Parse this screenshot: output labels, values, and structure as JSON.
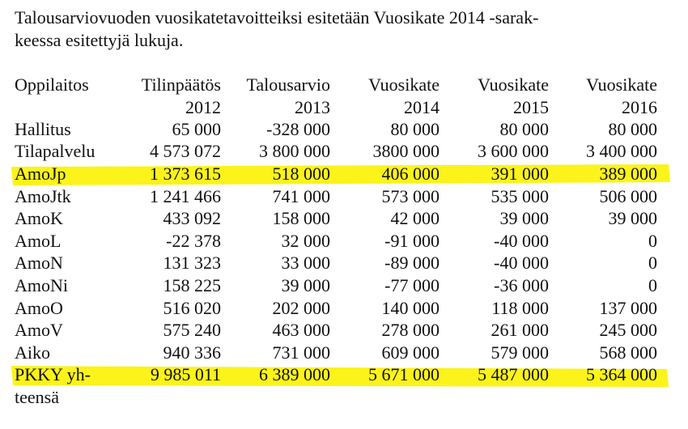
{
  "intro": {
    "lines": [
      "Talousarviovuoden vuosikatetavoitteiksi esitetään Vuosikate 2014 -sarak-",
      "keessa esitettyjä lukuja."
    ]
  },
  "table": {
    "header": [
      [
        "Oppilaitos"
      ],
      [
        "Tilinpäätös",
        "2012"
      ],
      [
        "Talousarvio",
        "2013"
      ],
      [
        "Vuosikate",
        "2014"
      ],
      [
        "Vuosikate",
        "2015"
      ],
      [
        "Vuosikate",
        "2016"
      ]
    ],
    "rows": [
      [
        [
          "Hallitus"
        ],
        "65 000",
        "-328 000",
        "80 000",
        "80 000",
        "80 000"
      ],
      [
        [
          "Tilapalvelu"
        ],
        "4 573 072",
        "3 800 000",
        "3800 000",
        "3 600 000",
        "3 400 000"
      ],
      [
        [
          "AmoJp"
        ],
        "1 373 615",
        "518 000",
        "406 000",
        "391 000",
        "389 000"
      ],
      [
        [
          "AmoJtk"
        ],
        "1 241 466",
        "741 000",
        "573 000",
        "535 000",
        "506 000"
      ],
      [
        [
          "AmoK"
        ],
        "433 092",
        "158 000",
        "42 000",
        "39 000",
        "39 000"
      ],
      [
        [
          "AmoL"
        ],
        "-22 378",
        "32 000",
        "-91 000",
        "-40 000",
        "0"
      ],
      [
        [
          "AmoN"
        ],
        "131 323",
        "33 000",
        "-89 000",
        "-40 000",
        "0"
      ],
      [
        [
          "AmoNi"
        ],
        "158 225",
        "39 000",
        "-77 000",
        "-36 000",
        "0"
      ],
      [
        [
          "AmoO"
        ],
        "516 020",
        "202 000",
        "140 000",
        "118 000",
        "137 000"
      ],
      [
        [
          "AmoV"
        ],
        "575 240",
        "463 000",
        "278 000",
        "261 000",
        "245 000"
      ],
      [
        [
          "Aiko"
        ],
        "940 336",
        "731 000",
        "609 000",
        "579 000",
        "568 000"
      ],
      [
        [
          "PKKY yh-",
          "teensä"
        ],
        "9 985 011",
        "6 389 000",
        "5 671 000",
        "5 487 000",
        "5 364 000"
      ]
    ]
  }
}
